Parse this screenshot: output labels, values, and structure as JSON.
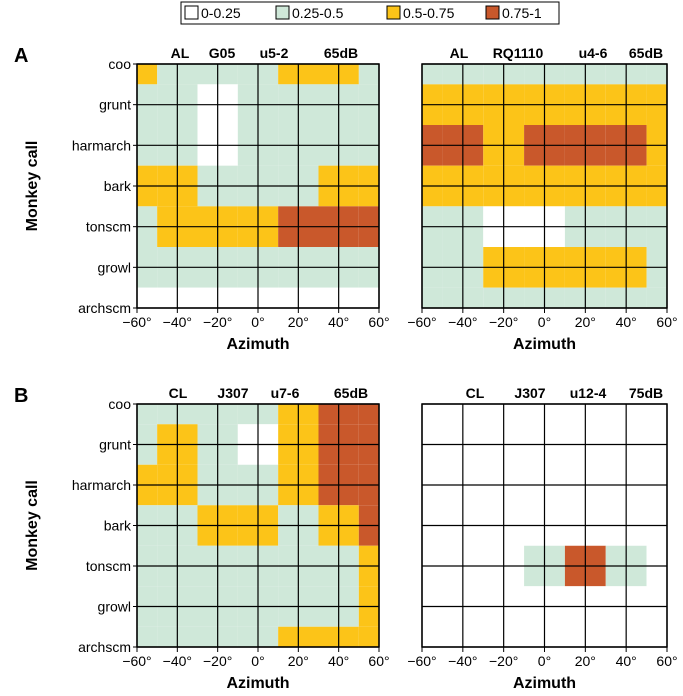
{
  "legend": {
    "items": [
      {
        "label": "0-0.25",
        "color": "#ffffff"
      },
      {
        "label": "0.25-0.5",
        "color": "#cfe8d9"
      },
      {
        "label": "0.5-0.75",
        "color": "#fcc418"
      },
      {
        "label": "0.75-1",
        "color": "#c9582b"
      }
    ]
  },
  "rows": [
    {
      "label": "A",
      "ylabel": "Monkey call",
      "xlabel": "Azimuth"
    },
    {
      "label": "B",
      "ylabel": "Monkey call",
      "xlabel": "Azimuth"
    }
  ],
  "chart_data": [
    {
      "type": "heatmap",
      "row": 0,
      "col": 0,
      "header": [
        "AL",
        "G05",
        "u5-2",
        "65dB"
      ],
      "x": [
        -60,
        -40,
        -20,
        0,
        20,
        40,
        60
      ],
      "y": [
        "coo",
        "grunt",
        "harmarch",
        "bark",
        "tonscm",
        "growl",
        "archscm"
      ],
      "z": [
        [
          0.55,
          0.35,
          0.3,
          0.35,
          0.55,
          0.6,
          0.35
        ],
        [
          0.3,
          0.3,
          0.15,
          0.3,
          0.3,
          0.3,
          0.3
        ],
        [
          0.3,
          0.3,
          0.15,
          0.3,
          0.3,
          0.3,
          0.3
        ],
        [
          0.55,
          0.55,
          0.4,
          0.4,
          0.4,
          0.55,
          0.55
        ],
        [
          0.4,
          0.55,
          0.55,
          0.6,
          0.75,
          0.85,
          0.75
        ],
        [
          0.3,
          0.35,
          0.35,
          0.4,
          0.35,
          0.3,
          0.35
        ],
        [
          0.15,
          0.15,
          0.15,
          0.15,
          0.15,
          0.15,
          0.15
        ]
      ]
    },
    {
      "type": "heatmap",
      "row": 0,
      "col": 1,
      "header": [
        "AL",
        "RQ1110",
        "u4-6",
        "65dB"
      ],
      "x": [
        -60,
        -40,
        -20,
        0,
        20,
        40,
        60
      ],
      "y": [
        "coo",
        "grunt",
        "harmarch",
        "bark",
        "tonscm",
        "growl",
        "archscm"
      ],
      "z": [
        [
          0.35,
          0.35,
          0.35,
          0.35,
          0.35,
          0.35,
          0.35
        ],
        [
          0.6,
          0.6,
          0.55,
          0.55,
          0.55,
          0.55,
          0.55
        ],
        [
          0.8,
          0.8,
          0.6,
          0.8,
          0.9,
          0.85,
          0.6
        ],
        [
          0.6,
          0.6,
          0.55,
          0.55,
          0.6,
          0.6,
          0.55
        ],
        [
          0.3,
          0.3,
          0.2,
          0.2,
          0.3,
          0.3,
          0.3
        ],
        [
          0.35,
          0.35,
          0.55,
          0.6,
          0.6,
          0.55,
          0.35
        ],
        [
          0.3,
          0.3,
          0.35,
          0.35,
          0.35,
          0.35,
          0.3
        ]
      ]
    },
    {
      "type": "heatmap",
      "row": 1,
      "col": 0,
      "header": [
        "CL",
        "J307",
        "u7-6",
        "65dB"
      ],
      "x": [
        -60,
        -40,
        -20,
        0,
        20,
        40,
        60
      ],
      "y": [
        "coo",
        "grunt",
        "harmarch",
        "bark",
        "tonscm",
        "growl",
        "archscm"
      ],
      "z": [
        [
          0.35,
          0.35,
          0.35,
          0.35,
          0.6,
          0.85,
          0.9
        ],
        [
          0.35,
          0.55,
          0.35,
          0.2,
          0.6,
          0.85,
          0.85
        ],
        [
          0.55,
          0.55,
          0.35,
          0.35,
          0.55,
          0.8,
          0.8
        ],
        [
          0.35,
          0.35,
          0.55,
          0.55,
          0.35,
          0.55,
          0.8
        ],
        [
          0.35,
          0.35,
          0.35,
          0.35,
          0.35,
          0.35,
          0.6
        ],
        [
          0.35,
          0.35,
          0.35,
          0.35,
          0.35,
          0.35,
          0.55
        ],
        [
          0.35,
          0.35,
          0.35,
          0.35,
          0.55,
          0.6,
          0.6
        ]
      ]
    },
    {
      "type": "heatmap",
      "row": 1,
      "col": 1,
      "header": [
        "CL",
        "J307",
        "u12-4",
        "75dB"
      ],
      "x": [
        -60,
        -40,
        -20,
        0,
        20,
        40,
        60
      ],
      "y": [
        "coo",
        "grunt",
        "harmarch",
        "bark",
        "tonscm",
        "growl",
        "archscm"
      ],
      "z": [
        [
          0.15,
          0.1,
          0.1,
          0.1,
          0.1,
          0.1,
          0.1
        ],
        [
          0.1,
          0.1,
          0.1,
          0.1,
          0.1,
          0.1,
          0.1
        ],
        [
          0.1,
          0.1,
          0.1,
          0.1,
          0.1,
          0.1,
          0.1
        ],
        [
          0.1,
          0.1,
          0.1,
          0.1,
          0.1,
          0.1,
          0.1
        ],
        [
          0.15,
          0.1,
          0.1,
          0.3,
          0.85,
          0.3,
          0.1
        ],
        [
          0.1,
          0.1,
          0.1,
          0.1,
          0.1,
          0.1,
          0.1
        ],
        [
          0.1,
          0.1,
          0.1,
          0.2,
          0.1,
          0.1,
          0.1
        ]
      ]
    }
  ]
}
